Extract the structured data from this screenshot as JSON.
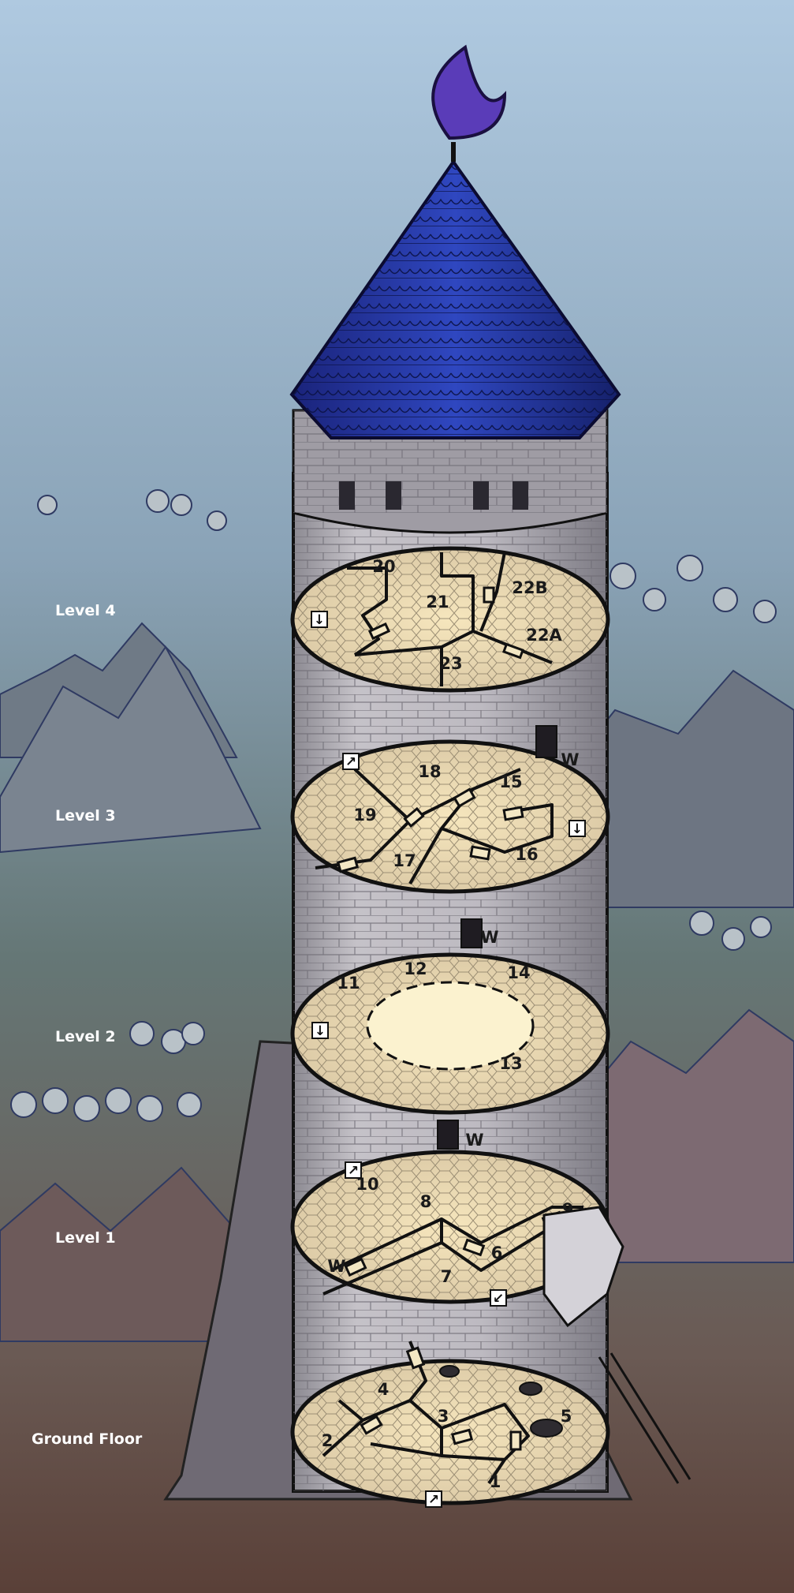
{
  "colors": {
    "sky_top": "#aac4dc",
    "sky_bottom": "#5d6d67",
    "ground": "#5f4a42",
    "roof": "#1b2a8a",
    "stone": "#b9b6bd",
    "floor": "#e8d3a4",
    "moon": "#5c3fb8"
  },
  "levels": [
    {
      "id": "level-4",
      "label": "Level 4",
      "rooms": [
        "20",
        "21",
        "22B",
        "22A",
        "23"
      ]
    },
    {
      "id": "level-3",
      "label": "Level 3",
      "rooms": [
        "18",
        "15",
        "19",
        "16",
        "17"
      ]
    },
    {
      "id": "level-2",
      "label": "Level 2",
      "rooms": [
        "11",
        "12",
        "14",
        "13"
      ]
    },
    {
      "id": "level-1",
      "label": "Level 1",
      "rooms": [
        "10",
        "8",
        "9",
        "6",
        "7"
      ]
    },
    {
      "id": "ground-floor",
      "label": "Ground Floor",
      "rooms": [
        "4",
        "3",
        "5",
        "2",
        "1"
      ]
    }
  ],
  "window_marks": [
    "W",
    "W",
    "W",
    "W"
  ]
}
